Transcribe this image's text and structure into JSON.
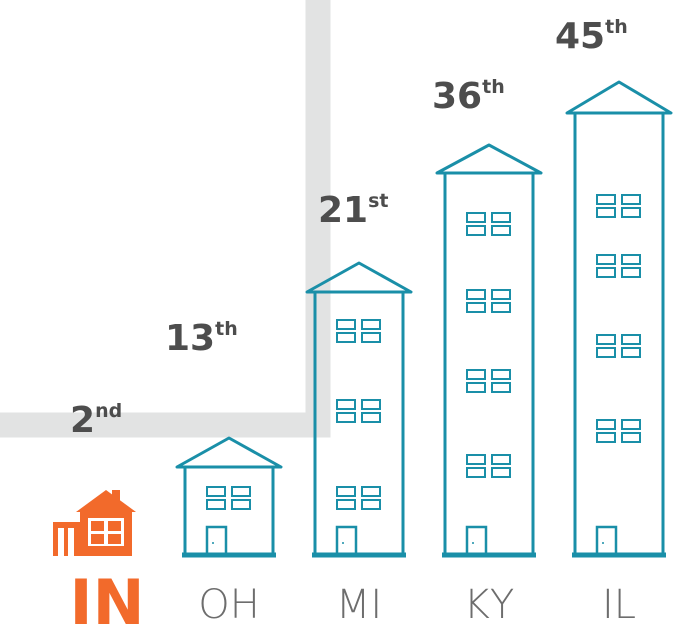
{
  "items": [
    {
      "state": "IN",
      "rank": "2",
      "suffix": "nd"
    },
    {
      "state": "OH",
      "rank": "13",
      "suffix": "th"
    },
    {
      "state": "MI",
      "rank": "21",
      "suffix": "st"
    },
    {
      "state": "KY",
      "rank": "36",
      "suffix": "th"
    },
    {
      "state": "IL",
      "rank": "45",
      "suffix": "th"
    }
  ]
}
